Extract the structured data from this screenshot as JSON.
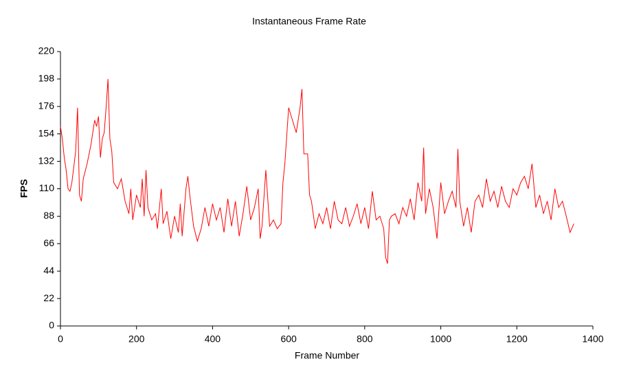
{
  "chart_data": {
    "type": "line",
    "title": "Instantaneous Frame Rate",
    "x_label": "Frame Number",
    "y_label": "FPS",
    "x": [
      0,
      5,
      10,
      15,
      20,
      25,
      30,
      40,
      45,
      50,
      55,
      60,
      70,
      80,
      90,
      95,
      100,
      105,
      110,
      115,
      120,
      125,
      130,
      135,
      140,
      150,
      160,
      170,
      180,
      185,
      190,
      200,
      210,
      215,
      220,
      225,
      230,
      240,
      250,
      255,
      265,
      270,
      280,
      290,
      300,
      310,
      315,
      320,
      330,
      335,
      340,
      350,
      360,
      370,
      380,
      390,
      400,
      410,
      420,
      430,
      440,
      450,
      460,
      470,
      480,
      490,
      500,
      510,
      520,
      525,
      530,
      540,
      550,
      560,
      570,
      580,
      585,
      590,
      600,
      610,
      620,
      630,
      635,
      640,
      650,
      655,
      660,
      670,
      680,
      690,
      700,
      710,
      720,
      730,
      740,
      750,
      760,
      770,
      780,
      790,
      800,
      810,
      820,
      830,
      840,
      850,
      855,
      860,
      865,
      870,
      880,
      890,
      900,
      910,
      920,
      930,
      940,
      950,
      955,
      960,
      970,
      980,
      990,
      1000,
      1010,
      1020,
      1030,
      1040,
      1045,
      1050,
      1060,
      1070,
      1080,
      1090,
      1100,
      1110,
      1120,
      1130,
      1140,
      1150,
      1160,
      1170,
      1180,
      1190,
      1200,
      1210,
      1220,
      1230,
      1240,
      1250,
      1260,
      1270,
      1280,
      1290,
      1300,
      1310,
      1320,
      1330,
      1340,
      1350
    ],
    "series": [
      {
        "name": "FPS",
        "color": "#ff0000",
        "values": [
          160,
          150,
          135,
          125,
          110,
          108,
          115,
          140,
          175,
          105,
          100,
          118,
          130,
          145,
          165,
          160,
          168,
          135,
          150,
          155,
          175,
          198,
          150,
          140,
          115,
          110,
          118,
          100,
          90,
          110,
          85,
          105,
          95,
          118,
          88,
          125,
          95,
          85,
          90,
          78,
          110,
          82,
          92,
          70,
          88,
          75,
          98,
          72,
          110,
          120,
          105,
          80,
          68,
          78,
          95,
          80,
          98,
          85,
          95,
          75,
          102,
          80,
          100,
          72,
          90,
          112,
          85,
          95,
          110,
          70,
          80,
          125,
          80,
          85,
          78,
          82,
          115,
          130,
          175,
          165,
          155,
          175,
          190,
          138,
          138,
          105,
          100,
          78,
          90,
          82,
          95,
          78,
          100,
          85,
          82,
          95,
          80,
          88,
          98,
          82,
          95,
          78,
          108,
          85,
          88,
          78,
          55,
          50,
          85,
          88,
          90,
          82,
          95,
          88,
          102,
          85,
          115,
          100,
          143,
          90,
          110,
          95,
          70,
          115,
          90,
          100,
          108,
          95,
          142,
          100,
          80,
          95,
          75,
          100,
          105,
          95,
          118,
          100,
          108,
          95,
          112,
          100,
          95,
          110,
          105,
          115,
          120,
          110,
          130,
          95,
          105,
          90,
          100,
          85,
          110,
          95,
          100,
          88,
          75,
          82
        ]
      }
    ],
    "xlim": [
      0,
      1400
    ],
    "xticks": [
      0,
      200,
      400,
      600,
      800,
      1000,
      1200,
      1400
    ],
    "ylim": [
      0,
      220
    ],
    "yticks": [
      0,
      22,
      44,
      66,
      88,
      110,
      132,
      154,
      176,
      198,
      220
    ],
    "grid": false
  }
}
